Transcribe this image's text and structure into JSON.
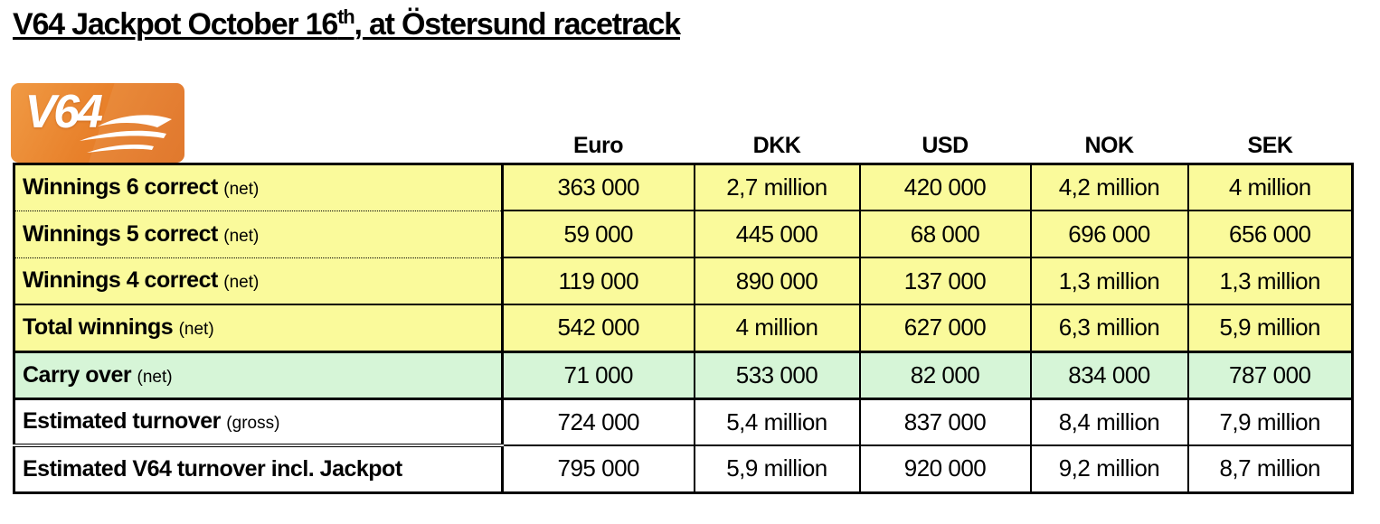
{
  "title": {
    "prefix": "V64 Jackpot October 16",
    "superscript": "th",
    "suffix": ", at Östersund racetrack"
  },
  "logo": {
    "text": "V64",
    "icon": "horse-swoosh"
  },
  "colors": {
    "row_yellow": "#FAFA9B",
    "row_green": "#D6F5D7",
    "logo_orange_light": "#F09A44",
    "logo_orange_mid": "#E8812B",
    "logo_orange_dark": "#DE6E1E",
    "border": "#000000"
  },
  "table": {
    "columns": [
      "Euro",
      "DKK",
      "USD",
      "NOK",
      "SEK"
    ],
    "rows": [
      {
        "label": "Winnings 6 correct",
        "note": "(net)",
        "highlight": "yellow",
        "values": [
          "363 000",
          "2,7 million",
          "420 000",
          "4,2 million",
          "4 million"
        ]
      },
      {
        "label": "Winnings 5 correct",
        "note": "(net)",
        "highlight": "yellow",
        "values": [
          "59 000",
          "445 000",
          "68 000",
          "696 000",
          "656 000"
        ]
      },
      {
        "label": "Winnings 4 correct",
        "note": "(net)",
        "highlight": "yellow",
        "values": [
          "119 000",
          "890 000",
          "137 000",
          "1,3 million",
          "1,3 million"
        ]
      },
      {
        "label": "Total winnings",
        "note": "(net)",
        "highlight": "yellow",
        "values": [
          "542 000",
          "4 million",
          "627 000",
          "6,3 million",
          "5,9 million"
        ]
      },
      {
        "label": "Carry over",
        "note": "(net)",
        "highlight": "green",
        "values": [
          "71 000",
          "533 000",
          "82 000",
          "834 000",
          "787 000"
        ]
      },
      {
        "label": "Estimated turnover",
        "note": "(gross)",
        "highlight": "white",
        "values": [
          "724 000",
          "5,4 million",
          "837 000",
          "8,4 million",
          "7,9 million"
        ]
      },
      {
        "label": "Estimated V64 turnover incl. Jackpot",
        "note": "",
        "highlight": "white",
        "values": [
          "795 000",
          "5,9 million",
          "920 000",
          "9,2 million",
          "8,7 million"
        ]
      }
    ]
  }
}
